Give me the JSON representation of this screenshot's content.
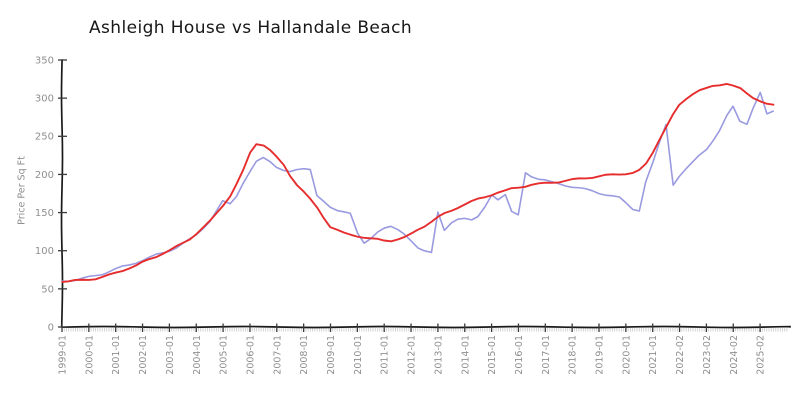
{
  "page": {
    "background": "#ffffff"
  },
  "chart_data": {
    "type": "line",
    "title": "Ashleigh House vs Hallandale Beach",
    "xlabel": "",
    "ylabel": "Price Per Sq Ft",
    "ylim": [
      0,
      350
    ],
    "y_ticks": [
      0,
      50,
      100,
      150,
      200,
      250,
      300,
      350
    ],
    "x_tick_labels": [
      "1999-01",
      "2000-01",
      "2001-01",
      "2002-01",
      "2003-01",
      "2004-01",
      "2005-01",
      "2006-01",
      "2007-01",
      "2008-01",
      "2009-01",
      "2010-01",
      "2011-01",
      "2012-01",
      "2013-01",
      "2014-01",
      "2015-01",
      "2016-01",
      "2017-01",
      "2018-01",
      "2019-01",
      "2020-01",
      "2021-01",
      "2022-02",
      "2023-02",
      "2024-02",
      "2025-02"
    ],
    "x_start": 1999.0,
    "x_step_years": 0.25,
    "grid": false,
    "legend_position": "none",
    "axis_color": "#1a1a1a",
    "tick_label_color": "#8f8f8f",
    "series": [
      {
        "name": "Ashleigh House",
        "color": "#9a9ae0",
        "values": [
          60,
          61,
          62,
          64,
          66,
          68,
          70,
          73,
          76,
          79,
          81,
          84,
          87,
          90,
          94,
          97,
          100,
          104,
          109,
          115,
          122,
          130,
          139,
          152,
          165,
          162,
          172,
          188,
          203,
          216,
          222,
          217,
          209,
          204,
          203,
          207,
          209,
          207,
          172,
          164,
          158,
          154,
          151,
          148,
          122,
          110,
          116,
          124,
          128,
          131,
          128,
          123,
          113,
          103,
          100,
          99,
          152,
          127,
          136,
          141,
          143,
          141,
          144,
          156,
          172,
          167,
          174,
          151,
          146,
          202,
          198,
          195,
          193,
          190,
          188,
          186,
          184,
          182,
          180,
          178,
          175,
          173,
          171,
          169,
          163,
          155,
          153,
          190,
          216,
          242,
          267,
          187,
          197,
          207,
          217,
          226,
          233,
          243,
          256,
          277,
          290,
          270,
          265,
          286,
          308,
          281,
          284
        ]
      },
      {
        "name": "Hallandale Beach",
        "color": "#e62d2d",
        "values": [
          60,
          60,
          61,
          62,
          63,
          64,
          66,
          68,
          71,
          74,
          77,
          80,
          84,
          88,
          92,
          96,
          100,
          105,
          110,
          116,
          123,
          130,
          139,
          149,
          160,
          172,
          186,
          205,
          228,
          240,
          238,
          231,
          222,
          212,
          199,
          187,
          177,
          168,
          157,
          144,
          132,
          127,
          123,
          121,
          119,
          117,
          115,
          114,
          113,
          113,
          115,
          117,
          122,
          128,
          133,
          139,
          144,
          149,
          153,
          157,
          161,
          164,
          167,
          170,
          173,
          176,
          178,
          181,
          183,
          185,
          187,
          188,
          189,
          190,
          191,
          192,
          193,
          194,
          195,
          196,
          197,
          198,
          199,
          200,
          201,
          202,
          205,
          214,
          230,
          246,
          263,
          278,
          291,
          300,
          306,
          310,
          312,
          315,
          317,
          319,
          316,
          312,
          306,
          301,
          297,
          293,
          291
        ]
      }
    ]
  }
}
